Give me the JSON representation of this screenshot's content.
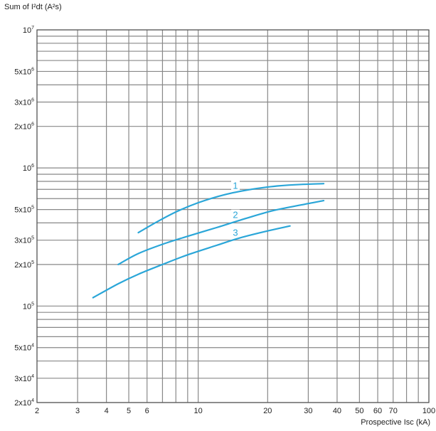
{
  "chart_data": {
    "type": "line",
    "title": "",
    "ylabel": "Sum of I²dt (A²s)",
    "xlabel": "Prospective Isc (kA)",
    "x_scale": "log",
    "y_scale": "log",
    "xlim": [
      2,
      100
    ],
    "ylim": [
      20000,
      10000000
    ],
    "grid": true,
    "x_ticks": [
      {
        "value": 2,
        "label": "2"
      },
      {
        "value": 3,
        "label": "3"
      },
      {
        "value": 4,
        "label": "4"
      },
      {
        "value": 5,
        "label": "5"
      },
      {
        "value": 6,
        "label": "6"
      },
      {
        "value": 10,
        "label": "10"
      },
      {
        "value": 20,
        "label": "20"
      },
      {
        "value": 30,
        "label": "30"
      },
      {
        "value": 40,
        "label": "40"
      },
      {
        "value": 50,
        "label": "50"
      },
      {
        "value": 60,
        "label": "60"
      },
      {
        "value": 70,
        "label": "70"
      },
      {
        "value": 100,
        "label": "100"
      }
    ],
    "y_ticks": [
      {
        "value": 20000,
        "mant": "2x10",
        "exp": "4"
      },
      {
        "value": 30000,
        "mant": "3x10",
        "exp": "4"
      },
      {
        "value": 50000,
        "mant": "5x10",
        "exp": "4"
      },
      {
        "value": 100000,
        "mant": "10",
        "exp": "5"
      },
      {
        "value": 200000,
        "mant": "2x10",
        "exp": "5"
      },
      {
        "value": 300000,
        "mant": "3x10",
        "exp": "5"
      },
      {
        "value": 500000,
        "mant": "5x10",
        "exp": "5"
      },
      {
        "value": 1000000,
        "mant": "10",
        "exp": "6"
      },
      {
        "value": 2000000,
        "mant": "2x10",
        "exp": "6"
      },
      {
        "value": 3000000,
        "mant": "3x10",
        "exp": "6"
      },
      {
        "value": 5000000,
        "mant": "5x10",
        "exp": "6"
      },
      {
        "value": 10000000,
        "mant": "10",
        "exp": "7"
      }
    ],
    "series": [
      {
        "label": "1",
        "color": "#2aa6d8",
        "x": [
          5.5,
          6.5,
          8,
          10,
          13,
          17,
          22,
          28,
          35
        ],
        "y": [
          340000,
          400000,
          480000,
          560000,
          640000,
          700000,
          740000,
          760000,
          770000
        ]
      },
      {
        "label": "2",
        "color": "#2aa6d8",
        "x": [
          4.5,
          5.5,
          7,
          9,
          12,
          16,
          21,
          28,
          35
        ],
        "y": [
          200000,
          240000,
          280000,
          320000,
          370000,
          430000,
          490000,
          540000,
          580000
        ]
      },
      {
        "label": "3",
        "color": "#2aa6d8",
        "x": [
          3.5,
          4.5,
          5.5,
          7,
          9,
          12,
          15,
          20,
          25
        ],
        "y": [
          115000,
          145000,
          170000,
          200000,
          235000,
          275000,
          310000,
          350000,
          380000
        ]
      }
    ]
  },
  "colors": {
    "grid": "#888888",
    "grid_minor": "#a8a8a8",
    "plot_border": "#555555"
  }
}
